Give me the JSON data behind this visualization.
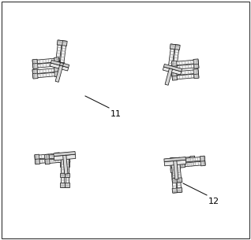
{
  "figure_width": 3.18,
  "figure_height": 3.05,
  "dpi": 100,
  "background_color": "#ffffff",
  "label_11": "11",
  "label_12": "12",
  "label_fontsize": 8,
  "border_color": "#1a1a1a",
  "fill_rod": "#f0f0f0",
  "fill_nut": "#d0d0d0",
  "fill_plate_top": "#e8e8e8",
  "fill_plate_side": "#c8c8c8",
  "fill_plate_front": "#d8d8d8",
  "thread_color": "#888888",
  "line_width": 0.55
}
